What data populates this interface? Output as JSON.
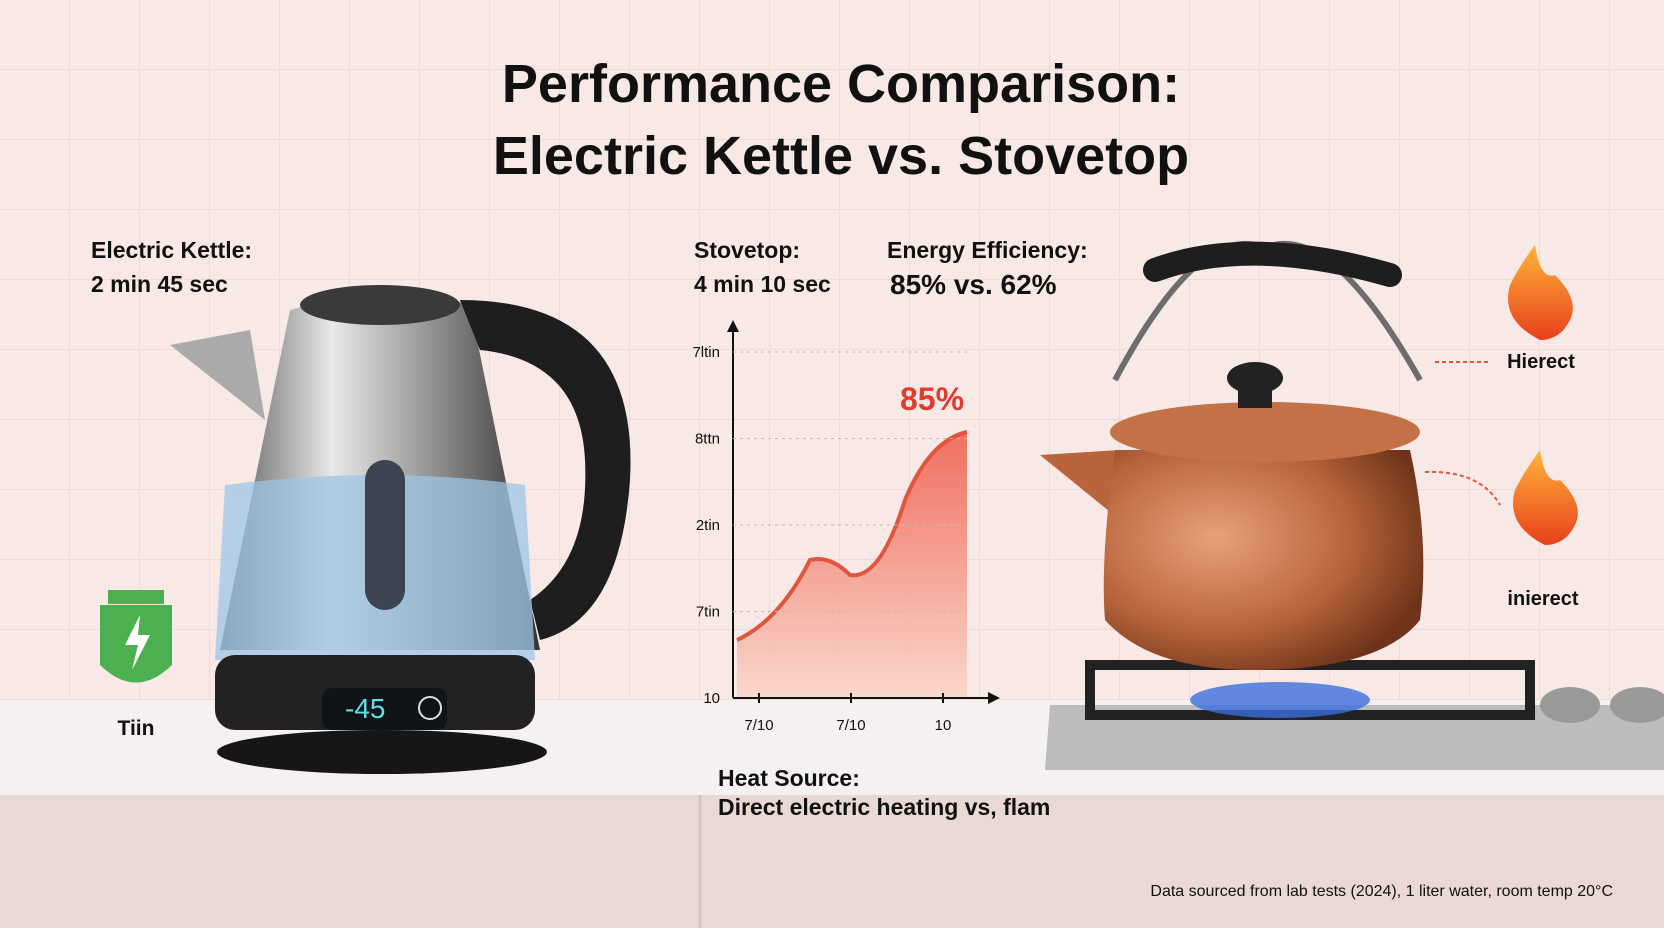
{
  "header": {
    "title_line1": "Performance Comparison:",
    "title_line2": "Electric Kettle vs. Stovetop"
  },
  "electric": {
    "label": "Electric Kettle:",
    "time": "2 min 45 sec",
    "display": "-45",
    "icon_label": "Tiin"
  },
  "stovetop": {
    "label": "Stovetop:",
    "time": "4 min 10 sec"
  },
  "efficiency": {
    "label": "Energy Efficiency:",
    "value": "85% vs. 62%"
  },
  "chart": {
    "y_tick_labels": [
      "7ltin",
      "8ttn",
      "2tin",
      "7tin",
      "10"
    ],
    "x_tick_labels": [
      "7/10",
      "7/10",
      "10"
    ],
    "annotation": "85%"
  },
  "heat_source": {
    "label": "Heat Source:",
    "text": "Direct electric heating vs, flam"
  },
  "flames": {
    "top_label": "Hierect",
    "bottom_label": "inierect"
  },
  "footer": {
    "note": "Data sourced from lab tests (2024), 1 liter water, room temp 20°C"
  }
}
